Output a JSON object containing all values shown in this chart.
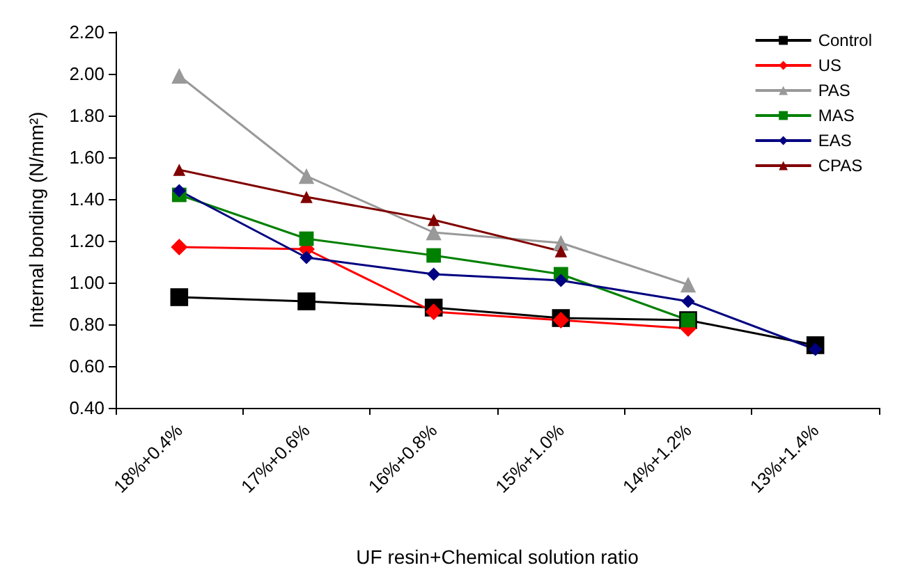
{
  "chart_data": {
    "type": "line",
    "xlabel": "UF resin+Chemical solution ratio",
    "ylabel": "Internal bonding (N/mm²)",
    "categories": [
      "18%+0.4%",
      "17%+0.6%",
      "16%+0.8%",
      "15%+1.0%",
      "14%+1.2%",
      "13%+1.4%"
    ],
    "ylim": [
      0.4,
      2.2
    ],
    "yticks": [
      {
        "value": 0.4,
        "label": "0.40"
      },
      {
        "value": 0.6,
        "label": "0.60"
      },
      {
        "value": 0.8,
        "label": "0.80"
      },
      {
        "value": 1.0,
        "label": "1.00"
      },
      {
        "value": 1.2,
        "label": "1.20"
      },
      {
        "value": 1.4,
        "label": "1.40"
      },
      {
        "value": 1.6,
        "label": "1.60"
      },
      {
        "value": 1.8,
        "label": "1.80"
      },
      {
        "value": 2.0,
        "label": "2.00"
      },
      {
        "value": 2.2,
        "label": "2.20"
      }
    ],
    "grid": false,
    "legend": "top right",
    "line_style": "solid",
    "series": [
      {
        "name": "Control",
        "color": "#000000",
        "marker": "square",
        "values": [
          0.93,
          0.91,
          0.88,
          0.83,
          0.82,
          0.7
        ]
      },
      {
        "name": "US",
        "color": "#ff0000",
        "marker": "diamond",
        "values": [
          1.17,
          1.16,
          0.86,
          0.82,
          0.78,
          null
        ]
      },
      {
        "name": "PAS",
        "color": "#999999",
        "marker": "triangle",
        "values": [
          1.99,
          1.51,
          1.24,
          1.19,
          0.99,
          null
        ]
      },
      {
        "name": "MAS",
        "color": "#008000",
        "marker": "square",
        "values": [
          1.42,
          1.21,
          1.13,
          1.04,
          0.82,
          null
        ]
      },
      {
        "name": "EAS",
        "color": "#000080",
        "marker": "diamond",
        "values": [
          1.44,
          1.12,
          1.04,
          1.01,
          0.91,
          0.68
        ]
      },
      {
        "name": "CPAS",
        "color": "#800000",
        "marker": "triangle",
        "values": [
          1.54,
          1.41,
          1.3,
          1.15,
          null,
          null
        ]
      }
    ]
  }
}
